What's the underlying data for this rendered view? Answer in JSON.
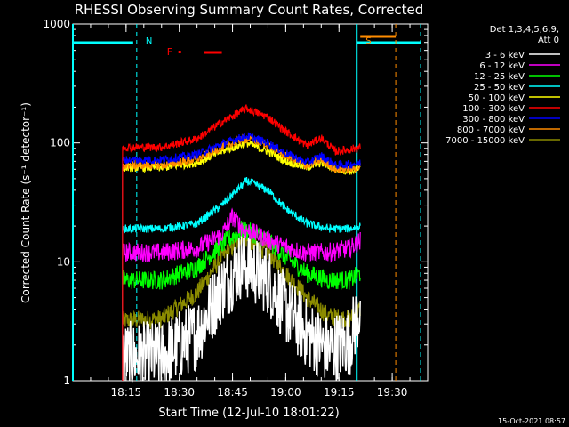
{
  "chart_data": {
    "type": "line",
    "title": "RHESSI Observing Summary Count Rates, Corrected",
    "xlabel": "Start Time (12-Jul-10 18:01:22)",
    "ylabel": "Corrected Count Rate (s⁻¹ detector⁻¹)",
    "yscale": "log",
    "xlim": [
      "18:00",
      "19:40"
    ],
    "ylim": [
      1,
      1000
    ],
    "xticks": [
      "18:15",
      "18:30",
      "18:45",
      "19:00",
      "19:15",
      "19:30"
    ],
    "yticks": [
      {
        "value": 1,
        "label": "1"
      },
      {
        "value": 10,
        "label": "10"
      },
      {
        "value": 100,
        "label": "100"
      },
      {
        "value": 1000,
        "label": "1000"
      }
    ],
    "legend_header": [
      "Det 1,3,4,5,6,9,",
      "Att 0"
    ],
    "legend_position": "right",
    "timestamp": "15-Oct-2021 08:57",
    "data_start": "18:14",
    "data_end": "19:21",
    "series": [
      {
        "name": "3 - 6 keV",
        "color": "#ffffff",
        "noise": "high",
        "x": [
          "18:14",
          "18:25",
          "18:35",
          "18:42",
          "18:48",
          "18:55",
          "19:00",
          "19:06",
          "19:12",
          "19:18",
          "19:21"
        ],
        "y": [
          1.6,
          1.6,
          2.5,
          6,
          10,
          7,
          4,
          2.5,
          1.8,
          2.2,
          4
        ]
      },
      {
        "name": "6 - 12 keV",
        "color": "#ff00ff",
        "noise": "med",
        "x": [
          "18:14",
          "18:25",
          "18:35",
          "18:42",
          "18:45",
          "18:48",
          "18:52",
          "18:58",
          "19:05",
          "19:12",
          "19:18",
          "19:21"
        ],
        "y": [
          12,
          12,
          13,
          17,
          24,
          19,
          17,
          14,
          12,
          12,
          13,
          15
        ]
      },
      {
        "name": "12 - 25 keV",
        "color": "#00ff00",
        "noise": "med",
        "x": [
          "18:14",
          "18:25",
          "18:35",
          "18:42",
          "18:48",
          "18:55",
          "19:00",
          "19:06",
          "19:12",
          "19:18",
          "19:21"
        ],
        "y": [
          7,
          7,
          9,
          14,
          19,
          15,
          11,
          8,
          7,
          7,
          8
        ]
      },
      {
        "name": "25 - 50 keV",
        "color": "#00ffff",
        "noise": "low",
        "x": [
          "18:14",
          "18:25",
          "18:35",
          "18:42",
          "18:49",
          "18:55",
          "19:00",
          "19:06",
          "19:12",
          "19:18",
          "19:21"
        ],
        "y": [
          19,
          19,
          21,
          30,
          48,
          40,
          28,
          21,
          19,
          19,
          20
        ]
      },
      {
        "name": "50 - 100 keV",
        "color": "#ffff00",
        "noise": "low",
        "x": [
          "18:14",
          "18:25",
          "18:35",
          "18:42",
          "18:49",
          "18:55",
          "19:00",
          "19:06",
          "19:10",
          "19:14",
          "19:18",
          "19:21"
        ],
        "y": [
          62,
          62,
          68,
          85,
          100,
          85,
          70,
          62,
          68,
          60,
          58,
          60
        ]
      },
      {
        "name": "100 - 300 keV",
        "color": "#ff0000",
        "noise": "low",
        "x": [
          "18:14",
          "18:25",
          "18:35",
          "18:42",
          "18:49",
          "18:55",
          "19:00",
          "19:06",
          "19:10",
          "19:14",
          "19:18",
          "19:21"
        ],
        "y": [
          92,
          92,
          108,
          150,
          195,
          165,
          125,
          95,
          110,
          85,
          88,
          92
        ]
      },
      {
        "name": "300 - 800 keV",
        "color": "#0000ff",
        "noise": "low",
        "x": [
          "18:14",
          "18:25",
          "18:35",
          "18:42",
          "18:49",
          "18:55",
          "19:00",
          "19:06",
          "19:10",
          "19:14",
          "19:18",
          "19:21"
        ],
        "y": [
          72,
          72,
          80,
          98,
          115,
          100,
          82,
          68,
          78,
          65,
          66,
          68
        ]
      },
      {
        "name": "800 - 7000 keV",
        "color": "#ff8c00",
        "noise": "low",
        "x": [
          "18:14",
          "18:25",
          "18:35",
          "18:42",
          "18:49",
          "18:55",
          "19:00",
          "19:06",
          "19:10",
          "19:14",
          "19:18",
          "19:21"
        ],
        "y": [
          65,
          65,
          73,
          92,
          110,
          96,
          78,
          64,
          72,
          60,
          60,
          63
        ]
      },
      {
        "name": "7000 - 15000 keV",
        "color": "#8b8b00",
        "noise": "med",
        "x": [
          "18:14",
          "18:25",
          "18:35",
          "18:42",
          "18:48",
          "18:55",
          "19:00",
          "19:06",
          "19:12",
          "19:18",
          "19:21"
        ],
        "y": [
          3.2,
          3.3,
          5.5,
          11,
          16,
          12,
          8,
          5,
          3.5,
          3.3,
          4
        ]
      }
    ],
    "annotations": {
      "night_markers": [
        {
          "label": "N",
          "time": "18:18",
          "color": "#00ffff"
        },
        {
          "label": "S",
          "time": "19:20",
          "color": "#ff8c00"
        }
      ],
      "flare_label": "F",
      "flare_color": "#ff0000",
      "flare_bar": {
        "start": "18:37",
        "end": "18:42"
      },
      "flare_dot": "18:30",
      "saa_bar": {
        "start": "19:21",
        "end": "19:31"
      },
      "saa_dashed_line": "19:31",
      "night_bars": [
        {
          "start": "18:00",
          "end": "18:17"
        },
        {
          "start": "19:20",
          "end": "19:38"
        }
      ],
      "night_dashed_lines": [
        "18:18",
        "19:38"
      ],
      "eclipse_solid_lines": [
        "18:00",
        "19:20"
      ]
    }
  }
}
